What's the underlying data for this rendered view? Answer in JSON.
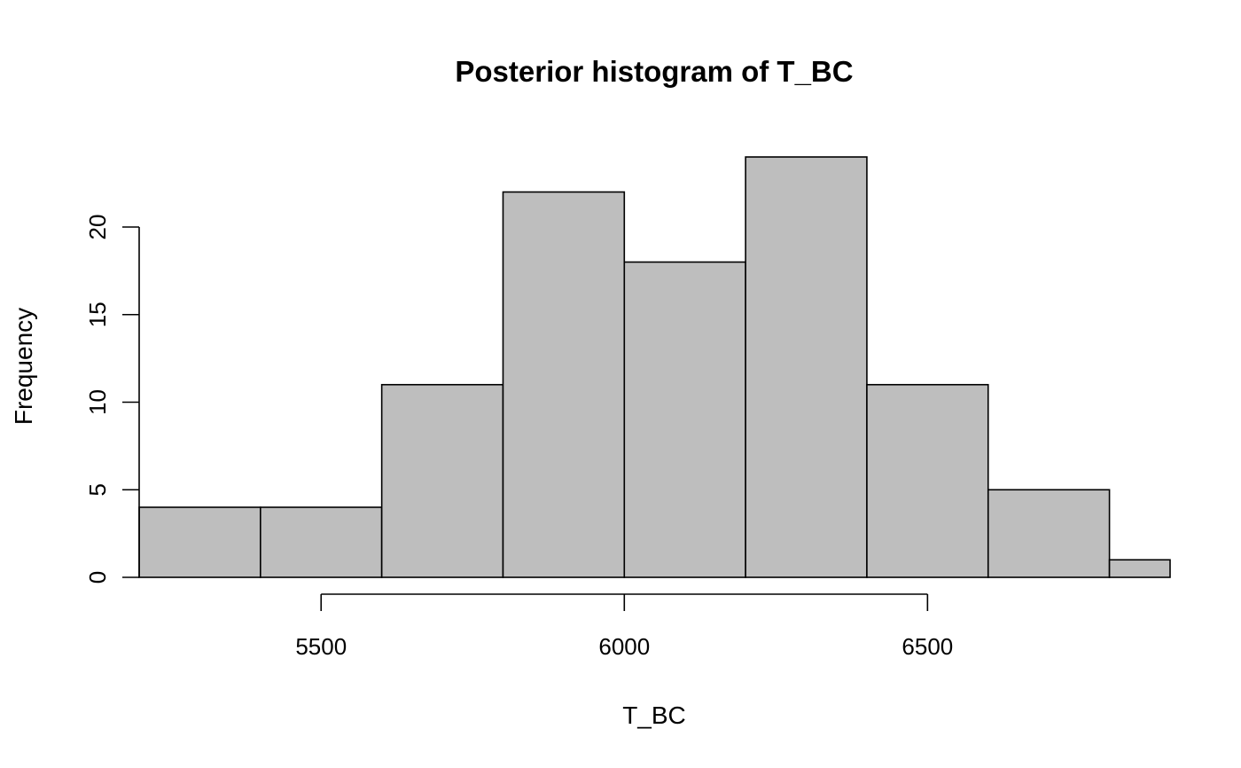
{
  "chart_data": {
    "type": "bar",
    "title": "Posterior histogram of T_BC",
    "xlabel": "T_BC",
    "ylabel": "Frequency",
    "bins": [
      {
        "start": 5200,
        "end": 5400,
        "count": 4
      },
      {
        "start": 5400,
        "end": 5600,
        "count": 4
      },
      {
        "start": 5600,
        "end": 5800,
        "count": 11
      },
      {
        "start": 5800,
        "end": 6000,
        "count": 22
      },
      {
        "start": 6000,
        "end": 6200,
        "count": 18
      },
      {
        "start": 6200,
        "end": 6400,
        "count": 24
      },
      {
        "start": 6400,
        "end": 6600,
        "count": 11
      },
      {
        "start": 6600,
        "end": 6800,
        "count": 5
      },
      {
        "start": 6800,
        "end": 6900,
        "count": 1
      }
    ],
    "xlim": [
      5200,
      6900
    ],
    "ylim": [
      0,
      24
    ],
    "x_ticks": [
      5500,
      6000,
      6500
    ],
    "y_ticks": [
      0,
      5,
      10,
      15,
      20
    ],
    "grid": false,
    "legend": "none"
  }
}
